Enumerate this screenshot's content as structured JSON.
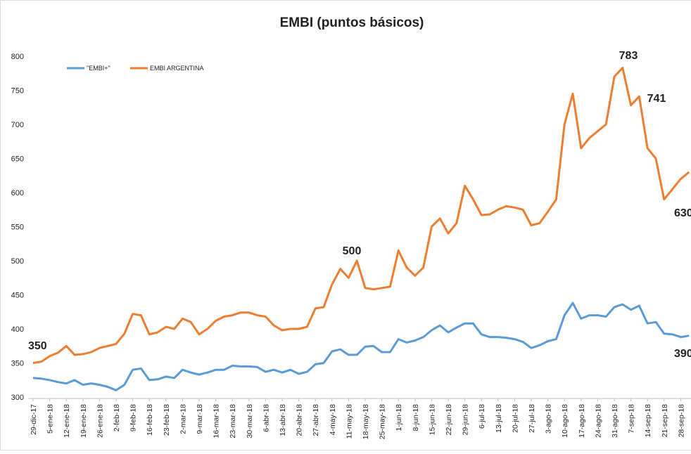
{
  "chart_data": {
    "type": "line",
    "title": "EMBI (puntos básicos)",
    "categories": [
      "29-dic-17",
      null,
      "5-ene-18",
      null,
      "12-ene-18",
      null,
      "19-ene-18",
      null,
      "26-ene-18",
      null,
      "2-feb-18",
      null,
      "9-feb-18",
      null,
      "16-feb-18",
      null,
      "23-feb-18",
      null,
      "2-mar-18",
      null,
      "9-mar-18",
      null,
      "16-mar-18",
      null,
      "23-mar-18",
      null,
      "30-mar-18",
      null,
      "6-abr-18",
      null,
      "13-abr-18",
      null,
      "20-abr-18",
      null,
      "27-abr-18",
      null,
      "4-may-18",
      null,
      "11-may-18",
      null,
      "18-may-18",
      null,
      "25-may-18",
      null,
      "1-jun-18",
      null,
      "8-jun-18",
      null,
      "15-jun-18",
      null,
      "22-jun-18",
      null,
      "29-jun-18",
      null,
      "6-jul-18",
      null,
      "13-jul-18",
      null,
      "20-jul-18",
      null,
      "27-jul-18",
      null,
      "3-ago-18",
      null,
      "10-ago-18",
      null,
      "17-ago-18",
      null,
      "24-ago-18",
      null,
      "31-ago-18",
      null,
      "7-sep-18",
      null,
      "14-sep-18",
      null,
      "21-sep-18",
      null,
      "28-sep-18",
      null
    ],
    "series": [
      {
        "name": "\"EMBI+\"",
        "color": "#5b9bd5",
        "values": [
          328,
          327,
          325,
          322,
          320,
          325,
          318,
          320,
          318,
          315,
          310,
          318,
          340,
          342,
          325,
          326,
          330,
          328,
          340,
          336,
          333,
          336,
          340,
          340,
          346,
          345,
          345,
          344,
          337,
          340,
          336,
          340,
          334,
          337,
          348,
          350,
          367,
          370,
          362,
          362,
          374,
          375,
          366,
          366,
          385,
          380,
          383,
          388,
          398,
          405,
          395,
          402,
          408,
          408,
          392,
          388,
          388,
          387,
          385,
          381,
          372,
          376,
          382,
          385,
          420,
          438,
          415,
          420,
          420,
          418,
          432,
          436,
          428,
          434,
          408,
          410,
          393,
          392,
          388,
          390
        ]
      },
      {
        "name": "EMBI ARGENTINA",
        "color": "#ed7d31",
        "values": [
          350,
          352,
          360,
          365,
          375,
          362,
          363,
          366,
          372,
          375,
          378,
          393,
          422,
          420,
          392,
          395,
          403,
          400,
          415,
          410,
          392,
          400,
          412,
          418,
          420,
          424,
          424,
          420,
          418,
          405,
          398,
          400,
          400,
          403,
          430,
          432,
          465,
          488,
          475,
          500,
          460,
          458,
          460,
          462,
          515,
          490,
          478,
          490,
          550,
          562,
          540,
          555,
          610,
          590,
          567,
          568,
          575,
          580,
          578,
          575,
          552,
          555,
          572,
          590,
          700,
          745,
          665,
          680,
          690,
          700,
          770,
          783,
          728,
          741,
          665,
          650,
          590,
          605,
          620,
          630
        ]
      }
    ],
    "annotations": [
      "350",
      "500",
      "783",
      "741",
      "630",
      "390"
    ],
    "ylim": [
      300,
      800
    ],
    "yticks": [
      300,
      350,
      400,
      450,
      500,
      550,
      600,
      650,
      700,
      750,
      800
    ],
    "grid": false,
    "legend": "top-left"
  }
}
